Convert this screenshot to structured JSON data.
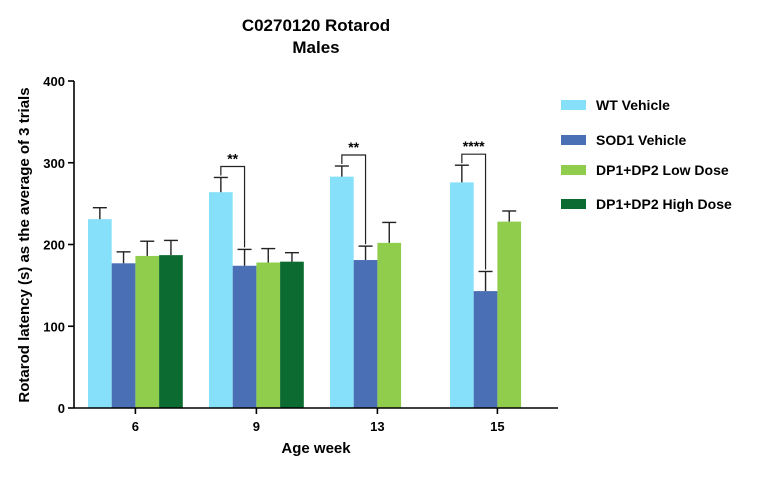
{
  "chart_data": {
    "type": "bar",
    "title": [
      "C0270120 Rotarod",
      "Males"
    ],
    "xlabel": "Age week",
    "ylabel": "Rotarod latency (s) as the average of 3 trials",
    "ylim": [
      0,
      400
    ],
    "yticks": [
      0,
      100,
      200,
      300,
      400
    ],
    "categories": [
      "6",
      "9",
      "13",
      "15"
    ],
    "series": [
      {
        "name": "WT Vehicle",
        "color": "#87e0f9",
        "values": [
          231,
          264,
          283,
          276
        ],
        "errors": [
          14,
          18,
          13,
          21
        ]
      },
      {
        "name": "SOD1 Vehicle",
        "color": "#4a6fb4",
        "values": [
          177,
          174,
          181,
          143
        ],
        "errors": [
          14,
          20,
          17,
          24
        ]
      },
      {
        "name": "DP1+DP2 Low Dose",
        "color": "#90cd4c",
        "values": [
          186,
          178,
          202,
          228
        ],
        "errors": [
          18,
          17,
          25,
          13
        ]
      },
      {
        "name": "DP1+DP2 High Dose",
        "color": "#0b6b30",
        "values": [
          187,
          179,
          null,
          null
        ],
        "errors": [
          18,
          11,
          null,
          null
        ]
      }
    ],
    "significance": [
      {
        "category": "9",
        "label": "**"
      },
      {
        "category": "13",
        "label": "**"
      },
      {
        "category": "15",
        "label": "****"
      }
    ],
    "legend_position": "right"
  }
}
